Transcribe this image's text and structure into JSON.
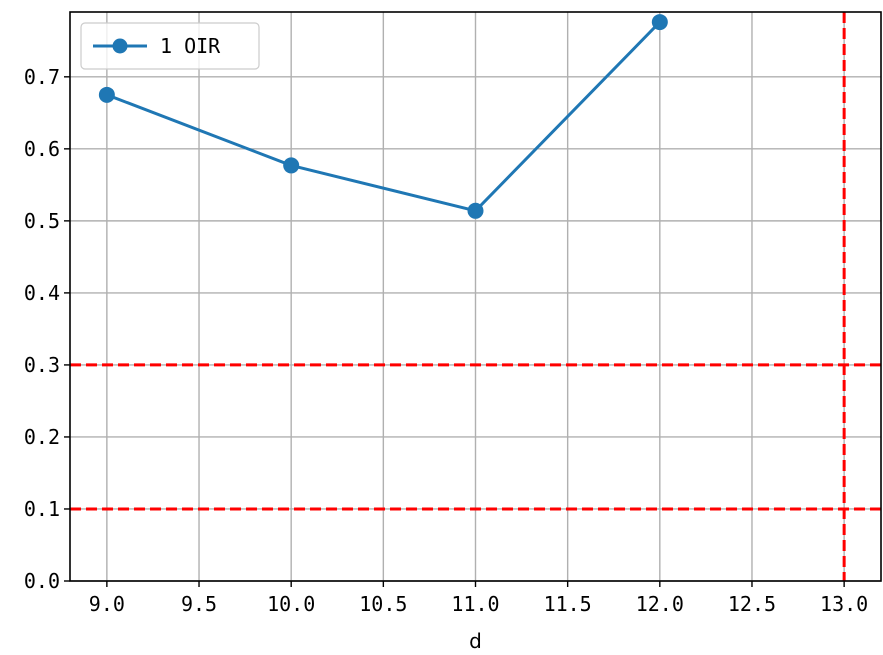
{
  "chart_data": {
    "type": "line",
    "title": "",
    "xlabel": "d",
    "ylabel": "",
    "xlim": [
      8.8,
      13.2
    ],
    "ylim": [
      0.0,
      0.79
    ],
    "xticks": [
      9.0,
      9.5,
      10.0,
      10.5,
      11.0,
      11.5,
      12.0,
      12.5,
      13.0
    ],
    "xtick_labels": [
      "9.0",
      "9.5",
      "10.0",
      "10.5",
      "11.0",
      "11.5",
      "12.0",
      "12.5",
      "13.0"
    ],
    "yticks": [
      0.0,
      0.1,
      0.2,
      0.3,
      0.4,
      0.5,
      0.6,
      0.7
    ],
    "ytick_labels": [
      "0.0",
      "0.1",
      "0.2",
      "0.3",
      "0.4",
      "0.5",
      "0.6",
      "0.7"
    ],
    "grid": true,
    "legend_position": "top-left",
    "series": [
      {
        "name": "1 OIR",
        "color": "#1f77b4",
        "marker": "circle",
        "x": [
          9.0,
          10.0,
          11.0,
          12.0
        ],
        "y": [
          0.675,
          0.577,
          0.514,
          0.776
        ]
      }
    ],
    "reference_lines": {
      "color": "#ff0000",
      "style": "dashed",
      "horizontal": [
        0.3,
        0.1
      ],
      "vertical": [
        13.0
      ]
    }
  }
}
